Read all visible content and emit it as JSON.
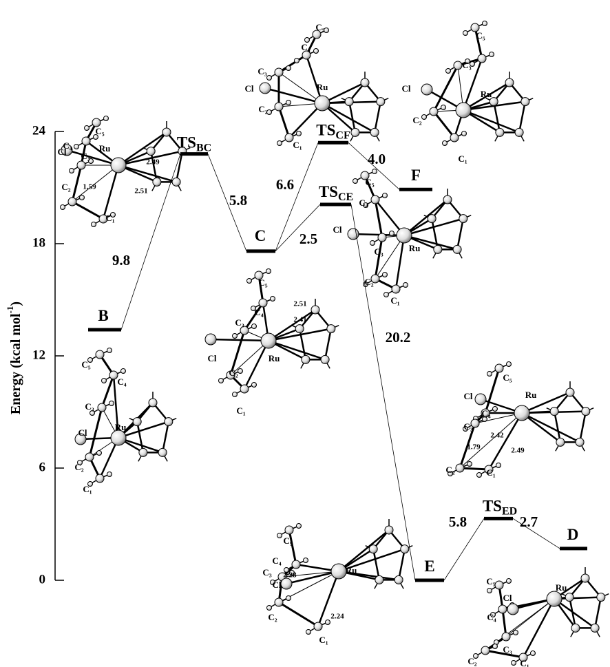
{
  "chart_data": {
    "type": "energy-profile",
    "ylabel": [
      "Energy (kcal mol",
      "-1",
      ")"
    ],
    "ylim": [
      0,
      24
    ],
    "yticks": [
      0,
      6,
      12,
      18,
      24
    ],
    "color": "#000000",
    "levels": [
      {
        "name": "B",
        "energy": 13.4
      },
      {
        "name": "TS",
        "sub": "BC",
        "energy": 22.8
      },
      {
        "name": "C",
        "energy": 17.6
      },
      {
        "name": "TS",
        "sub": "CF",
        "energy": 23.4
      },
      {
        "name": "F",
        "energy": 20.9
      },
      {
        "name": "TS",
        "sub": "CE",
        "energy": 20.1
      },
      {
        "name": "E",
        "energy": 0
      },
      {
        "name": "TS",
        "sub": "ED",
        "energy": 3.3
      },
      {
        "name": "D",
        "energy": 1.7
      }
    ],
    "barriers": [
      "9.8",
      "5.8",
      "6.6",
      "4.0",
      "2.5",
      "20.2",
      "5.8",
      "2.7"
    ],
    "molecules": [
      {
        "labels": [
          "C₅",
          "C₄",
          "Cl",
          "C₃",
          "Ru",
          "C₂",
          "C₁",
          "1.59",
          "2.49",
          "2.51"
        ]
      },
      {
        "labels": [
          "C₅",
          "C₄",
          "C₃",
          "Cl",
          "Ru",
          "C₂",
          "C₁"
        ]
      },
      {
        "labels": [
          "C₅",
          "C₄",
          "2.51",
          "2.41",
          "C₃",
          "Cl",
          "Ru",
          "C₂",
          "C₁"
        ]
      },
      {
        "labels": [
          "C₅",
          "C₄",
          "C₃",
          "Cl",
          "Ru",
          "C₂",
          "C₁"
        ]
      },
      {
        "labels": [
          "C₅",
          "C₃",
          "Cl",
          "Ru",
          "C₂",
          "C₁"
        ]
      },
      {
        "labels": [
          "C₅",
          "C₄",
          "Cl",
          "C₃",
          "Ru",
          "C₂",
          "C₁"
        ]
      },
      {
        "labels": [
          "C₅",
          "Cl",
          "C₄",
          "Ru",
          "C₃",
          "2.42",
          "1.79",
          "2.49",
          "C₂",
          "C₁"
        ]
      },
      {
        "labels": [
          "C₅",
          "C₄",
          "C₃",
          "2.28",
          "Ru",
          "Cl",
          "C₂",
          "2.24",
          "C₁"
        ]
      },
      {
        "labels": [
          "C₅",
          "Cl",
          "Ru",
          "C₄",
          "C₃",
          "C₂",
          "C₁"
        ]
      }
    ]
  }
}
